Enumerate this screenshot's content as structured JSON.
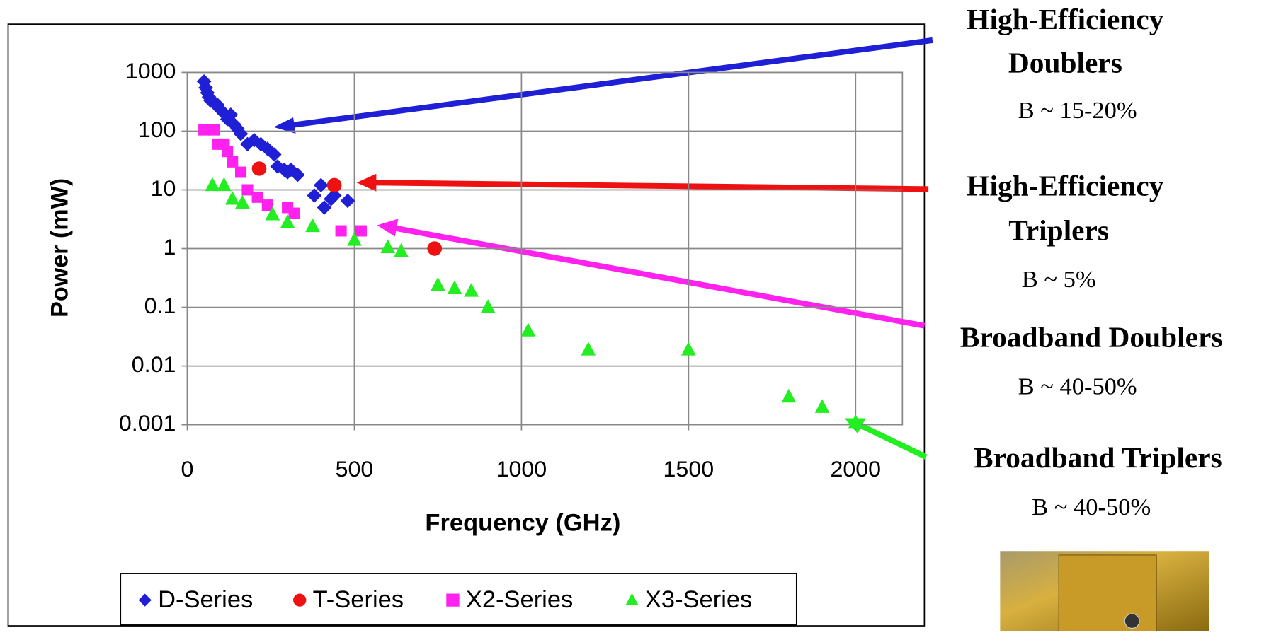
{
  "chart_data": {
    "type": "scatter",
    "x_label": "Frequency (GHz)",
    "y_label": "Power (mW)",
    "log_y": true,
    "grid": true,
    "xlim": [
      0,
      2140
    ],
    "xticks": [
      0,
      500,
      1000,
      1500,
      2000
    ],
    "ylim": [
      0.001,
      1000
    ],
    "yticks": [
      1000,
      100,
      10,
      1,
      0.1,
      0.01,
      0.001
    ],
    "series": [
      {
        "name": "D-Series",
        "color": "#1f1fd6",
        "marker": "diamond",
        "x": [
          50,
          55,
          60,
          65,
          70,
          80,
          90,
          100,
          110,
          120,
          130,
          140,
          150,
          160,
          180,
          200,
          220,
          240,
          260,
          270,
          290,
          300,
          310,
          330,
          380,
          400,
          410,
          430,
          440,
          480
        ],
        "values": [
          700,
          550,
          450,
          380,
          330,
          300,
          280,
          230,
          200,
          160,
          190,
          130,
          110,
          90,
          60,
          70,
          60,
          50,
          40,
          25,
          22,
          20,
          22,
          18,
          8,
          12,
          5,
          7,
          8,
          6.5
        ]
      },
      {
        "name": "T-Series",
        "color": "#ee1111",
        "marker": "circle",
        "x": [
          215,
          440,
          740
        ],
        "values": [
          23,
          12,
          1
        ]
      },
      {
        "name": "X2-Series",
        "color": "#ff22ee",
        "marker": "square",
        "x": [
          50,
          80,
          90,
          110,
          120,
          135,
          160,
          180,
          210,
          240,
          300,
          320,
          460,
          520
        ],
        "values": [
          105,
          105,
          60,
          60,
          45,
          30,
          20,
          10,
          7.5,
          5.5,
          5,
          4,
          2,
          2
        ]
      },
      {
        "name": "X3-Series",
        "color": "#22ee22",
        "marker": "triangle",
        "x": [
          75,
          110,
          135,
          165,
          255,
          300,
          375,
          500,
          600,
          640,
          750,
          800,
          850,
          900,
          1020,
          1200,
          1500,
          1800,
          1900,
          2000
        ],
        "values": [
          12,
          12,
          7,
          6,
          3.8,
          2.8,
          2.4,
          1.4,
          1.05,
          0.9,
          0.24,
          0.21,
          0.19,
          0.1,
          0.04,
          0.019,
          0.019,
          0.003,
          0.002,
          0.0011
        ]
      }
    ]
  },
  "annotations": [
    {
      "lines": [
        "High-Efficiency",
        "Doublers"
      ],
      "note": "B ~ 15-20%"
    },
    {
      "lines": [
        "High-Efficiency",
        "Triplers"
      ],
      "note": "B ~ 5%"
    },
    {
      "lines": [
        "Broadband Doublers"
      ],
      "note": "B ~ 40-50%"
    },
    {
      "lines": [
        "Broadband Triplers"
      ],
      "note": "B ~ 40-50%"
    }
  ]
}
